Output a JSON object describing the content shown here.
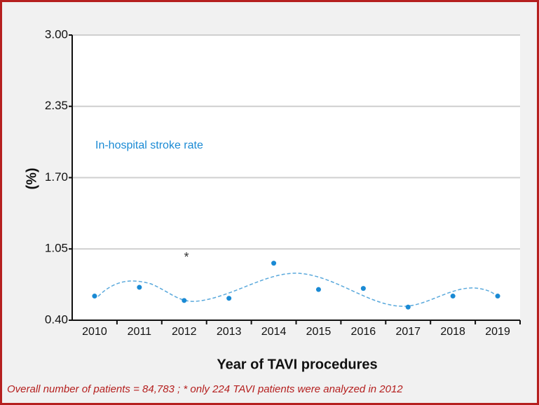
{
  "chart_data": {
    "type": "scatter",
    "y_label": "(%)",
    "x_label": "Year of TAVI procedures",
    "annotations": [
      "In-hospital stroke rate",
      "*"
    ],
    "footnote": "Overall number of patients = 84,783 ; * only 224 TAVI patients were analyzed in 2012",
    "categories": [
      "2010",
      "2011",
      "2012",
      "2013",
      "2014",
      "2015",
      "2016",
      "2017",
      "2018",
      "2019"
    ],
    "values": [
      0.62,
      0.7,
      0.58,
      0.6,
      0.92,
      0.68,
      0.69,
      0.52,
      0.62,
      0.62
    ],
    "color": "#1a8ad4",
    "ylim": [
      0.4,
      3.0
    ],
    "yticks": [
      {
        "value": 0.4,
        "label": "0.40"
      },
      {
        "value": 1.05,
        "label": "1.05"
      },
      {
        "value": 1.7,
        "label": "1.70"
      },
      {
        "value": 2.35,
        "label": "2.35"
      },
      {
        "value": 3.0,
        "label": "3.00"
      }
    ],
    "grid": true
  }
}
